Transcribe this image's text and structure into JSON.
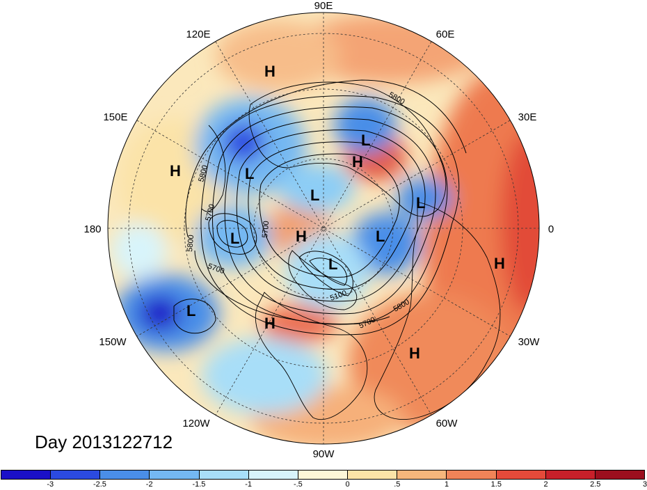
{
  "title": "Day 2013122712",
  "longitude_labels": [
    {
      "id": "90E",
      "text": "90E"
    },
    {
      "id": "120E",
      "text": "120E"
    },
    {
      "id": "60E",
      "text": "60E"
    },
    {
      "id": "150E",
      "text": "150E"
    },
    {
      "id": "30E",
      "text": "30E"
    },
    {
      "id": "180",
      "text": "180"
    },
    {
      "id": "0",
      "text": "0"
    },
    {
      "id": "150W",
      "text": "150W"
    },
    {
      "id": "30W",
      "text": "30W"
    },
    {
      "id": "120W",
      "text": "120W"
    },
    {
      "id": "60W",
      "text": "60W"
    },
    {
      "id": "90W",
      "text": "90W"
    }
  ],
  "pressure_centers": [
    "H",
    "L",
    "L",
    "L",
    "H",
    "L",
    "L",
    "L",
    "H",
    "L",
    "H",
    "H",
    "H",
    "L",
    "H"
  ],
  "contour_labels": [
    "5800",
    "5800",
    "5700",
    "5800",
    "5700",
    "5700",
    "5100",
    "5700",
    "5800"
  ],
  "colorbar": {
    "colors": [
      "#1a10c8",
      "#2b4ae0",
      "#4a8ee8",
      "#74b8f2",
      "#a8def8",
      "#d8f4fb",
      "#fdf7d8",
      "#fbe3a8",
      "#f6b67c",
      "#f08358",
      "#e54a3a",
      "#c8202a",
      "#9c0f1e"
    ],
    "tick_labels": [
      "-3",
      "-2.5",
      "-2",
      "-1.5",
      "-1",
      "-.5",
      "0",
      ".5",
      "1",
      "1.5",
      "2",
      "2.5",
      "3"
    ]
  }
}
